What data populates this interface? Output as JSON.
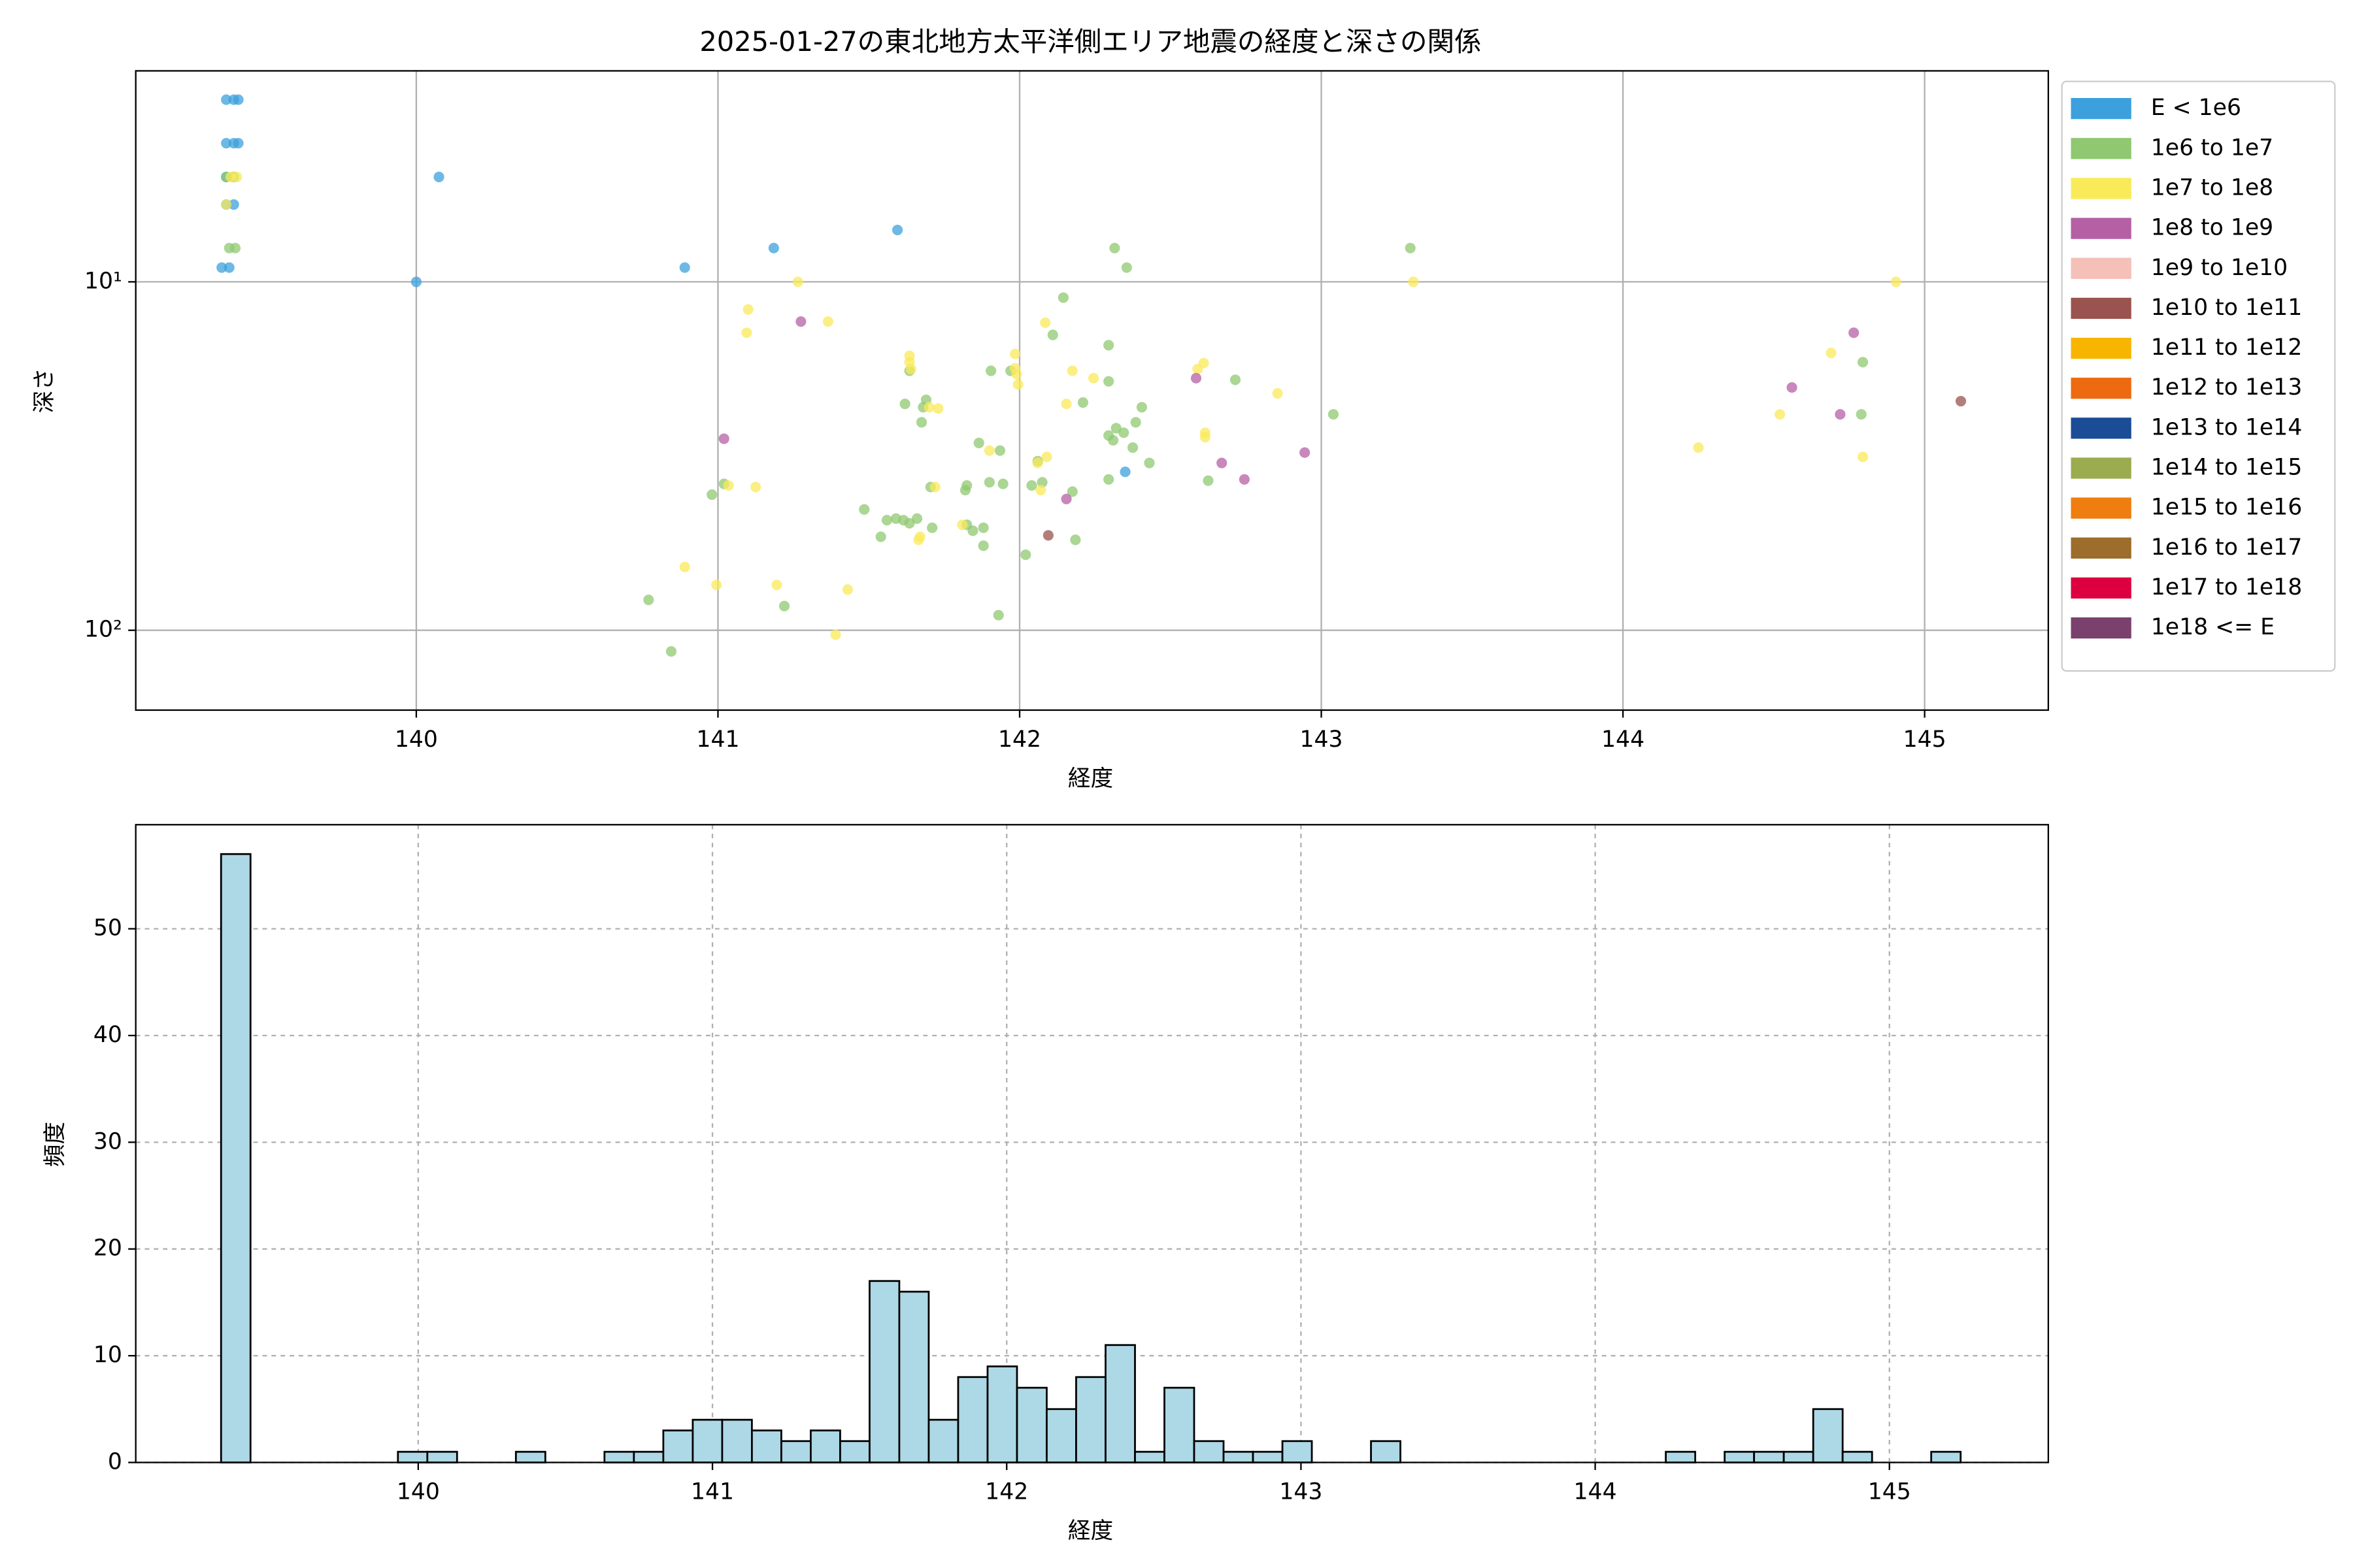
{
  "chart_data": [
    {
      "type": "scatter",
      "title": "2025-01-27の東北地方太平洋側エリア地震の経度と深さの関係",
      "xlabel": "経度",
      "ylabel": "深さ",
      "xlim": [
        139.07,
        145.41
      ],
      "xticks": [
        140,
        141,
        142,
        143,
        144,
        145
      ],
      "ylim": [
        2.48,
        169.5
      ],
      "ylog": true,
      "yinvert": true,
      "yticks": [
        {
          "value": 10,
          "label": "10¹"
        },
        {
          "value": 100,
          "label": "10²"
        }
      ],
      "grid": true,
      "legend": "outside",
      "series": [
        {
          "name": "E < 1e6",
          "color": "#3ca0dc",
          "x": [
            139.37,
            139.395,
            139.41,
            139.37,
            139.395,
            139.41,
            139.37,
            139.37,
            139.395,
            139.355,
            139.38,
            140.075,
            140,
            140.89,
            141.185,
            141.595,
            142.35
          ],
          "values": [
            3,
            3,
            3,
            4,
            4,
            4,
            5,
            6,
            6,
            9.1,
            9.1,
            5,
            10,
            9.1,
            8,
            7.1,
            35.1
          ]
        },
        {
          "name": "1e6 to 1e7",
          "color": "#8fc870",
          "x": [
            139.37,
            139.395,
            139.38,
            139.4,
            142.315,
            142.355,
            142.145,
            142.295,
            142.295,
            142.11,
            141.905,
            141.97,
            141.635,
            141.68,
            141.675,
            141.69,
            141.62,
            141.865,
            141.935,
            142.21,
            142.295,
            142.32,
            142.345,
            142.31,
            142.385,
            142.405,
            142.375,
            142.43,
            142.295,
            142.06,
            142.075,
            142.175,
            142.04,
            141.82,
            141.825,
            141.705,
            141.66,
            141.59,
            141.615,
            141.635,
            141.56,
            141.485,
            141.54,
            141.71,
            141.825,
            141.845,
            141.88,
            141.88,
            142.02,
            142.185,
            141.9,
            141.945,
            140.98,
            141.02,
            140.77,
            140.845,
            141.22,
            141.93,
            142.625,
            142.715,
            143.04,
            143.295,
            144.795,
            144.79
          ],
          "values": [
            5,
            5,
            8,
            8,
            8,
            9.1,
            11.1,
            15.2,
            19.3,
            14.2,
            18,
            18,
            18,
            22.9,
            25.3,
            21.8,
            22.4,
            29,
            30.5,
            22.2,
            27.6,
            26.3,
            27.1,
            28.5,
            25.3,
            22.9,
            29.9,
            33.1,
            36.9,
            32.7,
            37.6,
            40,
            38.4,
            39.6,
            38.4,
            38.8,
            47.8,
            47.8,
            48.3,
            49.3,
            48.3,
            45,
            53.9,
            50.8,
            49.8,
            51.8,
            50.8,
            57.2,
            60.7,
            55,
            37.6,
            38,
            40.8,
            38,
            81.8,
            115,
            85.2,
            90.5,
            37.2,
            19.1,
            24,
            8,
            17,
            24
          ]
        },
        {
          "name": "1e7 to 1e8",
          "color": "#f9ea5a",
          "x": [
            139.385,
            139.405,
            139.37,
            141.265,
            141.1,
            141.095,
            141.365,
            141.635,
            141.635,
            141.64,
            141.985,
            141.985,
            141.99,
            141.995,
            142.085,
            142.155,
            142.175,
            142.245,
            142.61,
            142.59,
            142.615,
            142.615,
            142.855,
            141.7,
            141.73,
            141.9,
            142.09,
            142.06,
            141.72,
            141.67,
            141.665,
            141.81,
            142.07,
            141.035,
            141.125,
            140.89,
            140.995,
            141.195,
            141.43,
            141.39,
            143.305,
            144.905,
            144.69,
            144.52,
            144.25,
            144.795
          ],
          "values": [
            5,
            5,
            6,
            10,
            12,
            14,
            13,
            16.3,
            17,
            17.8,
            16.1,
            17.7,
            18.4,
            19.7,
            13.1,
            22.4,
            18,
            18.9,
            17.1,
            17.8,
            27.1,
            27.9,
            20.9,
            22.9,
            23.1,
            30.5,
            31.8,
            33.1,
            38.8,
            53.9,
            55,
            49.8,
            39.6,
            38.4,
            38.8,
            65.8,
            74.1,
            74.1,
            76.4,
            103,
            10,
            10,
            16,
            24,
            29.9,
            31.8
          ]
        },
        {
          "name": "1e8 to 1e9",
          "color": "#b560a5",
          "x": [
            141.275,
            141.02,
            142.155,
            142.585,
            142.67,
            142.745,
            142.945,
            144.56,
            144.765,
            144.72
          ],
          "values": [
            13,
            28.2,
            42,
            18.9,
            33.1,
            36.9,
            30.9,
            20.1,
            14,
            24
          ]
        },
        {
          "name": "1e9 to 1e10",
          "color": "#f4c0b8",
          "x": [],
          "values": []
        },
        {
          "name": "1e10 to 1e11",
          "color": "#9a534e",
          "x": [
            142.095,
            145.12
          ],
          "values": [
            53.4,
            22
          ]
        },
        {
          "name": "1e11 to 1e12",
          "color": "#f8b500",
          "x": [],
          "values": []
        },
        {
          "name": "1e12 to 1e13",
          "color": "#ee6a10",
          "x": [],
          "values": []
        },
        {
          "name": "1e13 to 1e14",
          "color": "#1b4c96",
          "x": [],
          "values": []
        },
        {
          "name": "1e14 to 1e15",
          "color": "#9aac4e",
          "x": [],
          "values": []
        },
        {
          "name": "1e15 to 1e16",
          "color": "#ef7d10",
          "x": [],
          "values": []
        },
        {
          "name": "1e16 to 1e17",
          "color": "#9c6d2b",
          "x": [],
          "values": []
        },
        {
          "name": "1e17 to 1e18",
          "color": "#dc0040",
          "x": [],
          "values": []
        },
        {
          "name": "1e18 <= E",
          "color": "#7a406e",
          "x": [],
          "values": []
        }
      ]
    },
    {
      "type": "histogram",
      "xlabel": "経度",
      "ylabel": "頻度",
      "color": "#add8e6",
      "xlim": [
        139.04,
        145.54
      ],
      "xticks": [
        140,
        141,
        142,
        143,
        144,
        145
      ],
      "ylim": [
        0,
        59.75
      ],
      "yticks": [
        0,
        10,
        20,
        30,
        40,
        50
      ],
      "grid": true,
      "bins": [
        139.33,
        139.43,
        139.53,
        139.631,
        139.731,
        139.831,
        139.931,
        140.031,
        140.132,
        140.232,
        140.332,
        140.432,
        140.532,
        140.633,
        140.733,
        140.833,
        140.933,
        141.033,
        141.134,
        141.234,
        141.334,
        141.434,
        141.534,
        141.635,
        141.735,
        141.835,
        141.935,
        142.035,
        142.136,
        142.236,
        142.336,
        142.436,
        142.536,
        142.637,
        142.737,
        142.837,
        142.937,
        143.037,
        143.138,
        143.238,
        143.338,
        143.438,
        143.538,
        143.639,
        143.739,
        143.839,
        143.939,
        144.039,
        144.14,
        144.24,
        144.34,
        144.44,
        144.54,
        144.641,
        144.741,
        144.841,
        144.941,
        145.041,
        145.142,
        145.242
      ],
      "values": [
        57,
        0,
        0,
        0,
        0,
        0,
        1,
        1,
        0,
        0,
        1,
        0,
        0,
        1,
        1,
        3,
        4,
        4,
        3,
        2,
        3,
        2,
        17,
        16,
        4,
        8,
        9,
        7,
        5,
        8,
        11,
        1,
        7,
        2,
        1,
        1,
        2,
        0,
        0,
        2,
        0,
        0,
        0,
        0,
        0,
        0,
        0,
        0,
        0,
        1,
        0,
        1,
        1,
        1,
        5,
        1,
        0,
        0,
        1
      ]
    }
  ]
}
